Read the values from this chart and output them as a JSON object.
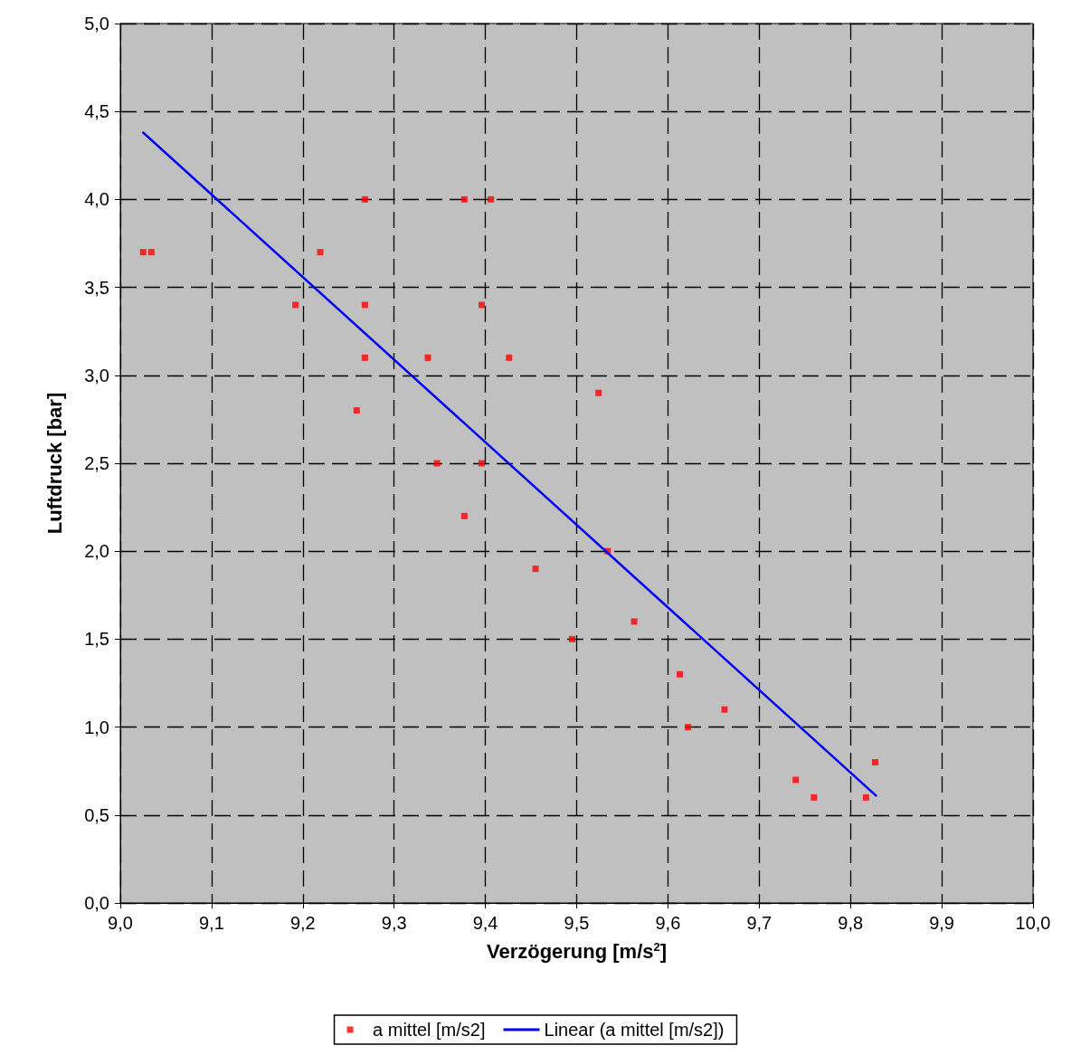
{
  "chart_data": {
    "type": "scatter",
    "xlabel": "Verzögerung [m/s$^{2}$]",
    "ylabel": "Luftdruck [bar]",
    "xlim": [
      9,
      10
    ],
    "ylim": [
      0,
      5
    ],
    "xticks": [
      {
        "value": 9,
        "label": "9,0"
      },
      {
        "value": 9.1,
        "label": "9,1"
      },
      {
        "value": 9.2,
        "label": "9,2"
      },
      {
        "value": 9.3,
        "label": "9,3"
      },
      {
        "value": 9.4,
        "label": "9,4"
      },
      {
        "value": 9.5,
        "label": "9,5"
      },
      {
        "value": 9.6,
        "label": "9,6"
      },
      {
        "value": 9.7,
        "label": "9,7"
      },
      {
        "value": 9.8,
        "label": "9,8"
      },
      {
        "value": 9.9,
        "label": "9,9"
      },
      {
        "value": 10,
        "label": "10,0"
      }
    ],
    "yticks": [
      {
        "value": 0,
        "label": "0,0"
      },
      {
        "value": 0.5,
        "label": "0,5"
      },
      {
        "value": 1,
        "label": "1,0"
      },
      {
        "value": 1.5,
        "label": "1,5"
      },
      {
        "value": 2,
        "label": "2,0"
      },
      {
        "value": 2.5,
        "label": "2,5"
      },
      {
        "value": 3,
        "label": "3,0"
      },
      {
        "value": 3.5,
        "label": "3,5"
      },
      {
        "value": 4,
        "label": "4,0"
      },
      {
        "value": 4.5,
        "label": "4,5"
      },
      {
        "value": 5,
        "label": "5,0"
      }
    ],
    "grid": true,
    "legend": "bottom",
    "series": [
      {
        "name": "a mittel [m/s2]",
        "color": "#ff0000",
        "marker": "square",
        "x": [
          9.025,
          9.034,
          9.192,
          9.219,
          9.268,
          9.268,
          9.268,
          9.259,
          9.337,
          9.347,
          9.377,
          9.406,
          9.396,
          9.396,
          9.377,
          9.426,
          9.455,
          9.495,
          9.524,
          9.534,
          9.563,
          9.613,
          9.622,
          9.662,
          9.74,
          9.76,
          9.817,
          9.827
        ],
        "values": [
          3.7,
          3.7,
          3.4,
          3.7,
          4.0,
          3.4,
          3.1,
          2.8,
          3.1,
          2.5,
          4.0,
          4.0,
          3.4,
          2.5,
          2.2,
          3.1,
          1.9,
          1.5,
          2.9,
          2.0,
          1.6,
          1.3,
          1.0,
          1.1,
          0.7,
          0.6,
          0.6,
          0.8
        ]
      },
      {
        "name": "Linear (a mittel [m/s2])",
        "type": "line",
        "color": "#0000ff",
        "marker": "none",
        "line_style": "solid",
        "x": [
          9.025,
          9.828
        ],
        "values": [
          4.38,
          0.61
        ]
      }
    ]
  }
}
